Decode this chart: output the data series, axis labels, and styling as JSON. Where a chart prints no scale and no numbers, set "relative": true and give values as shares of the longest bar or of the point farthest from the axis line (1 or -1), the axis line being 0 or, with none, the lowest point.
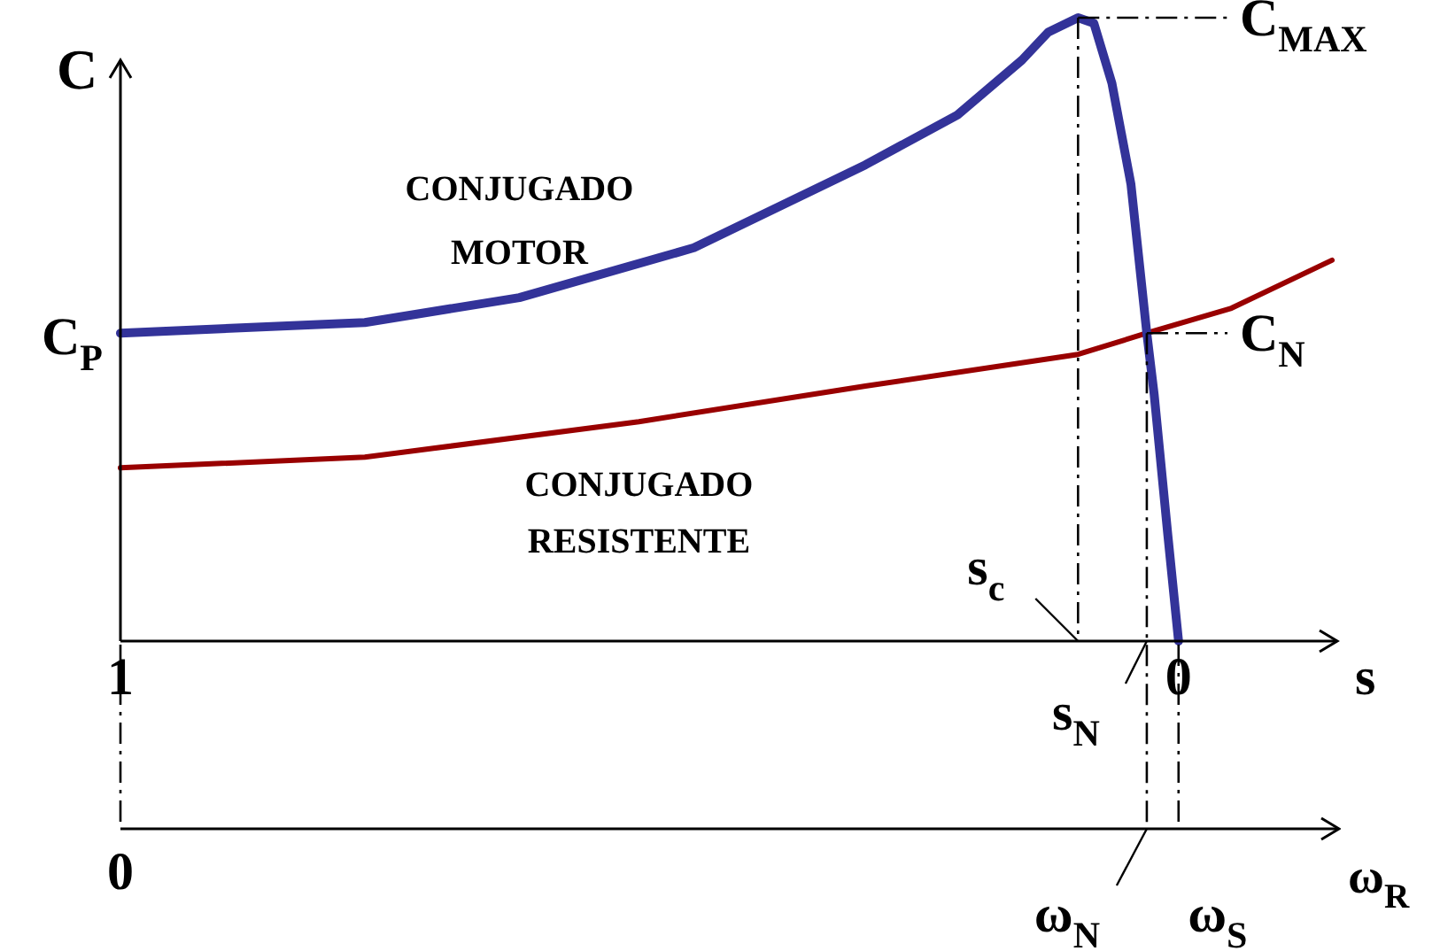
{
  "chart_data": {
    "type": "line",
    "relative": true,
    "xlabel": "s",
    "ylabel": "C",
    "x2label": "ω$_{R}$",
    "xlim": [
      1,
      -0.15
    ],
    "xticks": [
      1,
      0
    ],
    "series": [
      {
        "name": "CONJUGADO MOTOR",
        "color": "#333399",
        "x": [
          1,
          0.769,
          0.623,
          0.458,
          0.296,
          0.209,
          0.148,
          0.123,
          0.095,
          0.08,
          0.063,
          0.045,
          0.03,
          0.023,
          0.01,
          0
        ],
        "values": [
          0.494,
          0.511,
          0.551,
          0.631,
          0.764,
          0.844,
          0.932,
          0.977,
          1,
          0.991,
          0.895,
          0.733,
          0.494,
          0.395,
          0.168,
          0
        ]
      },
      {
        "name": "CONJUGADO RESISTENTE",
        "color": "#990000",
        "x": [
          1,
          0.769,
          0.51,
          0.296,
          0.095,
          0.03,
          -0.05,
          -0.145
        ],
        "values": [
          0.278,
          0.295,
          0.352,
          0.409,
          0.46,
          0.494,
          0.534,
          0.611
        ]
      }
    ],
    "ref_lines": [
      {
        "axis": "x",
        "value": 0.095
      },
      {
        "axis": "x",
        "value": 0.03
      },
      {
        "axis": "y",
        "value": 1,
        "label": "C$_{MAX}$"
      },
      {
        "axis": "y",
        "value": 0.494,
        "label": "C$_{N}$"
      }
    ],
    "annotations": [
      {
        "text": "C$_{P}$",
        "x": 1,
        "y": 0.494
      },
      {
        "text": "s$_{c}$",
        "x": 0.095,
        "y": 0
      },
      {
        "text": "s$_{N}$",
        "x": 0.03,
        "y": 0
      },
      "0",
      "ω$_{N}$",
      "ω$_{S}$"
    ],
    "line_style": "solid",
    "marker": "none",
    "legend": false
  }
}
